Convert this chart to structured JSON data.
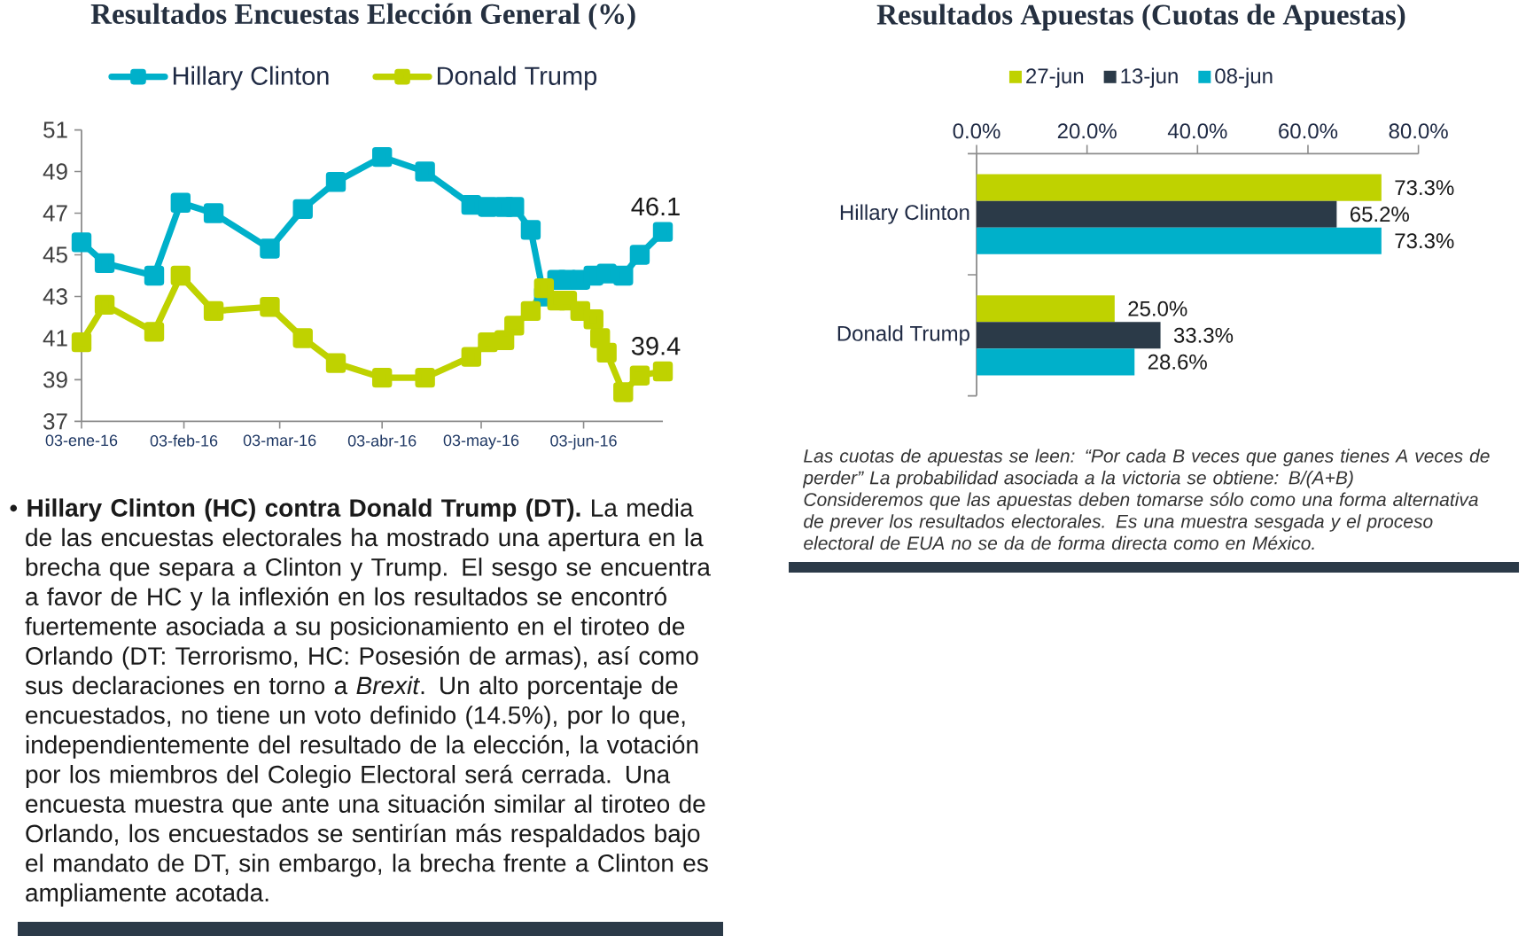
{
  "chart_data": [
    {
      "type": "line",
      "title": "Resultados Encuestas Elección General (%)",
      "legend": "top",
      "marker": "square",
      "line_style": "solid",
      "xlim": [
        "2016-01-03",
        "2016-06-27"
      ],
      "xticks": [
        {
          "value": "2016-01-03",
          "label": "03-ene-16"
        },
        {
          "value": "2016-02-03",
          "label": "03-feb-16"
        },
        {
          "value": "2016-03-03",
          "label": "03-mar-16"
        },
        {
          "value": "2016-04-03",
          "label": "03-abr-16"
        },
        {
          "value": "2016-05-03",
          "label": "03-may-16"
        },
        {
          "value": "2016-06-03",
          "label": "03-jun-16"
        }
      ],
      "ylim": [
        37,
        51
      ],
      "yticks": [
        37,
        39,
        41,
        43,
        45,
        47,
        49,
        51
      ],
      "series": [
        {
          "name": "Hillary Clinton",
          "color": "#00b0ca",
          "x": [
            "2016-01-03",
            "2016-01-10",
            "2016-01-25",
            "2016-02-02",
            "2016-02-12",
            "2016-02-29",
            "2016-03-10",
            "2016-03-20",
            "2016-04-03",
            "2016-04-16",
            "2016-04-30",
            "2016-05-05",
            "2016-05-10",
            "2016-05-13",
            "2016-05-18",
            "2016-05-22",
            "2016-05-26",
            "2016-05-29",
            "2016-06-02",
            "2016-06-06",
            "2016-06-10",
            "2016-06-15",
            "2016-06-20",
            "2016-06-27"
          ],
          "values": [
            45.6,
            44.6,
            44.0,
            47.5,
            47.0,
            45.3,
            47.2,
            48.5,
            49.7,
            49.0,
            47.4,
            47.3,
            47.3,
            47.3,
            46.2,
            43.0,
            43.8,
            43.8,
            43.8,
            44.0,
            44.1,
            44.0,
            45.0,
            46.1
          ],
          "value_labels": [
            null,
            null,
            null,
            null,
            null,
            null,
            null,
            null,
            null,
            null,
            null,
            null,
            null,
            null,
            null,
            null,
            null,
            null,
            null,
            null,
            null,
            null,
            null,
            "46.1"
          ]
        },
        {
          "name": "Donald Trump",
          "color": "#bfd200",
          "x": [
            "2016-01-03",
            "2016-01-10",
            "2016-01-25",
            "2016-02-02",
            "2016-02-12",
            "2016-02-29",
            "2016-03-10",
            "2016-03-20",
            "2016-04-03",
            "2016-04-16",
            "2016-04-30",
            "2016-05-05",
            "2016-05-10",
            "2016-05-13",
            "2016-05-18",
            "2016-05-22",
            "2016-05-26",
            "2016-05-29",
            "2016-06-02",
            "2016-06-06",
            "2016-06-08",
            "2016-06-10",
            "2016-06-15",
            "2016-06-20",
            "2016-06-27"
          ],
          "values": [
            40.8,
            42.6,
            41.3,
            44.0,
            42.3,
            42.5,
            41.0,
            39.8,
            39.1,
            39.1,
            40.1,
            40.8,
            40.9,
            41.6,
            42.3,
            43.4,
            42.8,
            42.8,
            42.3,
            41.9,
            41.0,
            40.3,
            38.4,
            39.2,
            39.4
          ],
          "value_labels": [
            null,
            null,
            null,
            null,
            null,
            null,
            null,
            null,
            null,
            null,
            null,
            null,
            null,
            null,
            null,
            null,
            null,
            null,
            null,
            null,
            null,
            null,
            null,
            null,
            "39.4"
          ]
        }
      ],
      "annotations": [
        "• **Hillary Clinton (HC) contra Donald Trump (DT).** La media de las encuestas electorales ha mostrado una apertura en la brecha que separa a Clinton y Trump. El sesgo se encuentra a favor de HC y la inflexión en los resultados se encontró fuertemente asociada a su posicionamiento en el tiroteo de Orlando (DT: Terrorismo, HC: Posesión de armas), así como sus declaraciones en torno a *Brexit*. Un alto porcentaje de encuestados, no tiene un voto definido (14.5%), por lo que, independientemente del resultado de la elección, la votación por los miembros del Colegio Electoral será cerrada. Una encuesta muestra que ante una situación similar al tiroteo de Orlando, los encuestados se sentirían más respaldados bajo el mandato de DT, sin embargo, la brecha frente a Clinton es ampliamente acotada."
      ]
    },
    {
      "type": "bar",
      "orientation": "horizontal",
      "title": "Resultados Apuestas (Cuotas de Apuestas)",
      "legend": "top",
      "categories": [
        "Hillary Clinton",
        "Donald Trump"
      ],
      "xlim": [
        0,
        80
      ],
      "xticks": [
        {
          "value": 0,
          "label": "0.0%"
        },
        {
          "value": 20,
          "label": "20.0%"
        },
        {
          "value": 40,
          "label": "40.0%"
        },
        {
          "value": 60,
          "label": "60.0%"
        },
        {
          "value": 80,
          "label": "80.0%"
        }
      ],
      "series": [
        {
          "name": "27-jun",
          "color": "#bfd200",
          "values": [
            73.3,
            25.0
          ],
          "value_labels": [
            "73.3%",
            "25.0%"
          ]
        },
        {
          "name": "13-jun",
          "color": "#2b3a48",
          "values": [
            65.2,
            33.3
          ],
          "value_labels": [
            "65.2%",
            "33.3%"
          ]
        },
        {
          "name": "08-jun",
          "color": "#00b0ca",
          "values": [
            73.3,
            28.6
          ],
          "value_labels": [
            "73.3%",
            "28.6%"
          ]
        }
      ],
      "annotations": [
        "Las cuotas de apuestas se leen: “Por cada B veces que ganes tienes A veces de perder” La probabilidad asociada a la victoria se obtiene: B/(A+B)",
        "Consideremos que las apuestas deben tomarse sólo como una forma alternativa de prever los resultados electorales. Es una muestra sesgada y el proceso electoral de EUA no se da de forma directa como en México."
      ]
    }
  ]
}
